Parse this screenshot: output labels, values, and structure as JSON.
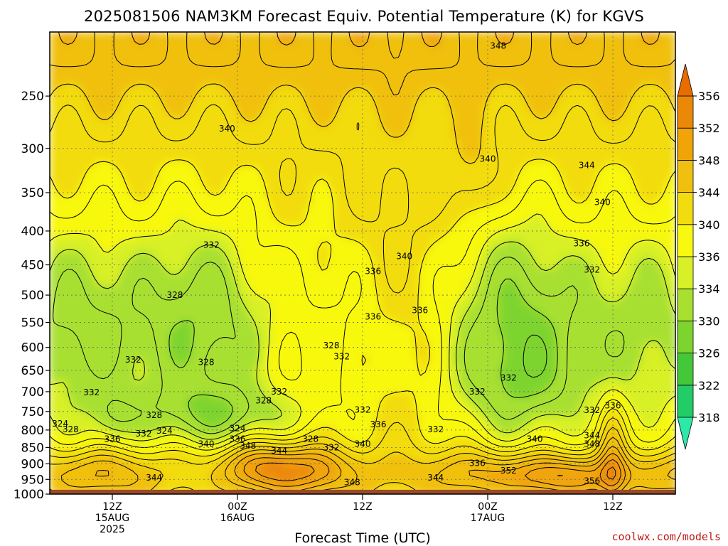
{
  "chart_data": {
    "type": "contour",
    "title": "2025081506 NAM3KM Forecast Equiv. Potential Temperature (K) for KGVS",
    "xlabel": "Forecast Time (UTC)",
    "ylabel": "",
    "y_axis": {
      "scale": "log",
      "inverted": true,
      "range": [
        200,
        1000
      ],
      "ticks": [
        250,
        300,
        350,
        400,
        450,
        500,
        550,
        600,
        650,
        700,
        750,
        800,
        850,
        900,
        950,
        1000
      ]
    },
    "x_axis": {
      "range_hours": [
        0,
        60
      ],
      "ticks": [
        {
          "hour": 6,
          "lines": [
            "12Z",
            "15AUG",
            "2025"
          ]
        },
        {
          "hour": 18,
          "lines": [
            "00Z",
            "16AUG"
          ]
        },
        {
          "hour": 30,
          "lines": [
            "12Z"
          ]
        },
        {
          "hour": 42,
          "lines": [
            "00Z",
            "17AUG"
          ]
        },
        {
          "hour": 54,
          "lines": [
            "12Z"
          ]
        }
      ]
    },
    "grid": true,
    "surface_below": 985,
    "colorbar": {
      "placement": "right",
      "levels": [
        318,
        322,
        326,
        330,
        334,
        336,
        340,
        344,
        348,
        352,
        356
      ],
      "colors": [
        "#2ee8a8",
        "#22cc66",
        "#44c83a",
        "#7ed42e",
        "#a8e030",
        "#d8f028",
        "#f8f810",
        "#f2dc10",
        "#f0c010",
        "#f0a408",
        "#ec8808",
        "#e86c00"
      ]
    },
    "contour_labels": [
      {
        "text": "348",
        "hour": 43.0,
        "p": 210
      },
      {
        "text": "340",
        "hour": 17.0,
        "p": 280
      },
      {
        "text": "340",
        "hour": 42.0,
        "p": 311
      },
      {
        "text": "344",
        "hour": 51.5,
        "p": 318
      },
      {
        "text": "340",
        "hour": 53.0,
        "p": 362
      },
      {
        "text": "332",
        "hour": 15.5,
        "p": 420
      },
      {
        "text": "336",
        "hour": 51.0,
        "p": 418
      },
      {
        "text": "340",
        "hour": 34.0,
        "p": 437
      },
      {
        "text": "336",
        "hour": 31.0,
        "p": 460
      },
      {
        "text": "332",
        "hour": 52.0,
        "p": 458
      },
      {
        "text": "328",
        "hour": 12.0,
        "p": 500
      },
      {
        "text": "336",
        "hour": 35.5,
        "p": 527
      },
      {
        "text": "336",
        "hour": 31.0,
        "p": 539
      },
      {
        "text": "328",
        "hour": 27.0,
        "p": 596
      },
      {
        "text": "332",
        "hour": 28.0,
        "p": 619
      },
      {
        "text": "332",
        "hour": 8.0,
        "p": 626
      },
      {
        "text": "328",
        "hour": 15.0,
        "p": 632
      },
      {
        "text": "332",
        "hour": 44.0,
        "p": 667
      },
      {
        "text": "332",
        "hour": 41.0,
        "p": 700
      },
      {
        "text": "332",
        "hour": 4.0,
        "p": 702
      },
      {
        "text": "332",
        "hour": 22.0,
        "p": 700
      },
      {
        "text": "328",
        "hour": 20.5,
        "p": 722
      },
      {
        "text": "332",
        "hour": 52.0,
        "p": 747
      },
      {
        "text": "336",
        "hour": 54.0,
        "p": 735
      },
      {
        "text": "332",
        "hour": 30.0,
        "p": 746
      },
      {
        "text": "328",
        "hour": 10.0,
        "p": 760
      },
      {
        "text": "324",
        "hour": 1.0,
        "p": 783
      },
      {
        "text": "336",
        "hour": 31.5,
        "p": 785
      },
      {
        "text": "324",
        "hour": 18.0,
        "p": 795
      },
      {
        "text": "328",
        "hour": 2.0,
        "p": 798
      },
      {
        "text": "332",
        "hour": 37.0,
        "p": 798
      },
      {
        "text": "324",
        "hour": 11.0,
        "p": 802
      },
      {
        "text": "332",
        "hour": 9.0,
        "p": 810
      },
      {
        "text": "344",
        "hour": 52.0,
        "p": 815
      },
      {
        "text": "336",
        "hour": 6.0,
        "p": 825
      },
      {
        "text": "336",
        "hour": 18.0,
        "p": 825
      },
      {
        "text": "328",
        "hour": 25.0,
        "p": 825
      },
      {
        "text": "340",
        "hour": 46.5,
        "p": 825
      },
      {
        "text": "340",
        "hour": 15.0,
        "p": 840
      },
      {
        "text": "348",
        "hour": 19.0,
        "p": 845
      },
      {
        "text": "348",
        "hour": 52.0,
        "p": 840
      },
      {
        "text": "332",
        "hour": 27.0,
        "p": 850
      },
      {
        "text": "340",
        "hour": 30.0,
        "p": 840
      },
      {
        "text": "344",
        "hour": 22.0,
        "p": 860
      },
      {
        "text": "336",
        "hour": 41.0,
        "p": 898
      },
      {
        "text": "352",
        "hour": 44.0,
        "p": 922
      },
      {
        "text": "344",
        "hour": 10.0,
        "p": 945
      },
      {
        "text": "344",
        "hour": 37.0,
        "p": 945
      },
      {
        "text": "356",
        "hour": 52.0,
        "p": 955
      },
      {
        "text": "348",
        "hour": 29.0,
        "p": 960
      }
    ]
  },
  "watermark": "coolwx.com/models"
}
